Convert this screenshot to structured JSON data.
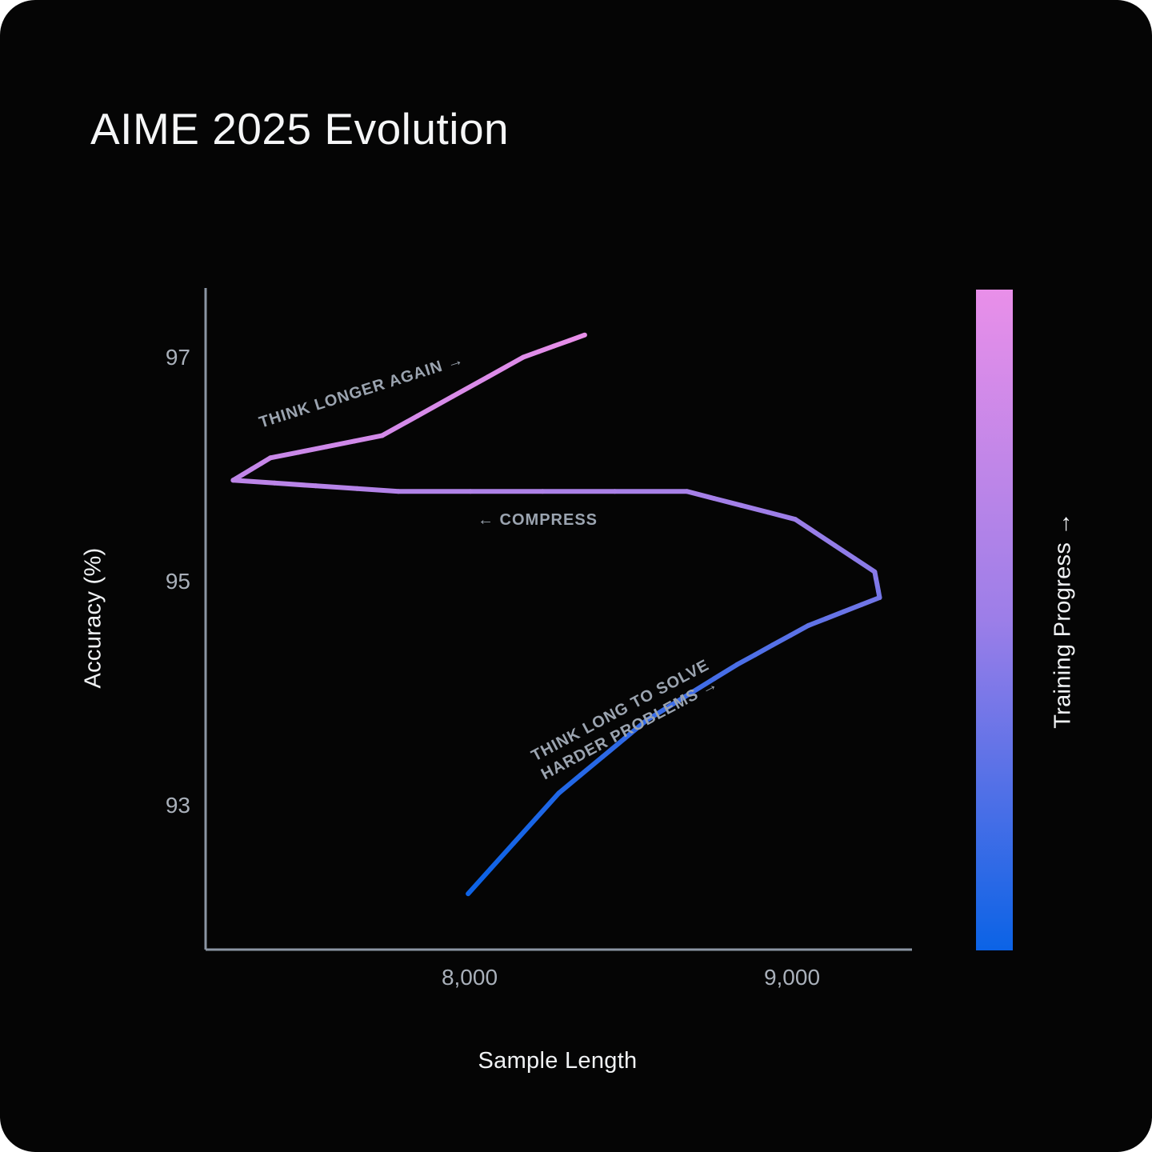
{
  "title": "AIME 2025 Evolution",
  "chart_data": {
    "type": "line",
    "title": "AIME 2025 Evolution",
    "xlabel": "Sample Length",
    "ylabel": "Accuracy (%)",
    "colorbar_label": "Training Progress →",
    "grid": false,
    "legend_position": "colorbar-right",
    "xlim": [
      7190,
      9370
    ],
    "ylim": [
      91.7,
      97.62
    ],
    "x_ticks": [
      {
        "value": 8000,
        "label": "8,000"
      },
      {
        "value": 9000,
        "label": "9,000"
      }
    ],
    "y_ticks": [
      {
        "value": 97,
        "label": "97"
      },
      {
        "value": 95,
        "label": "95"
      },
      {
        "value": 93,
        "label": "93"
      }
    ],
    "series": [
      {
        "name": "accuracy-vs-sample-length-over-training-progress",
        "progress_colormap": [
          "#0b63e6",
          "#9c7ee8",
          "#e98fe9"
        ],
        "points": [
          [
            8000,
            92.2
          ],
          [
            8280,
            93.1
          ],
          [
            8550,
            93.75
          ],
          [
            8830,
            94.25
          ],
          [
            9050,
            94.6
          ],
          [
            9270,
            94.85
          ],
          [
            9255,
            95.08
          ],
          [
            9010,
            95.55
          ],
          [
            8675,
            95.8
          ],
          [
            7785,
            95.8
          ],
          [
            7275,
            95.9
          ],
          [
            7390,
            96.1
          ],
          [
            7735,
            96.3
          ],
          [
            8170,
            97.0
          ],
          [
            8360,
            97.2
          ]
        ]
      }
    ],
    "annotations": [
      {
        "text": "THINK LONGER AGAIN →"
      },
      {
        "text": "← COMPRESS"
      },
      {
        "text": "THINK LONG TO SOLVE",
        "text_line2": "HARDER PROBLEMS →"
      }
    ],
    "colors": {
      "background": "#050505",
      "page_background": "#ffffff",
      "title": "#f5f6f7",
      "axis": "#8b95a3",
      "tick_label": "#a9b0ba",
      "axis_label": "#f0f2f4",
      "annotation": "#9ba4b0",
      "colorbar_top": "#e98fe9",
      "colorbar_bottom": "#0b63e6"
    }
  }
}
